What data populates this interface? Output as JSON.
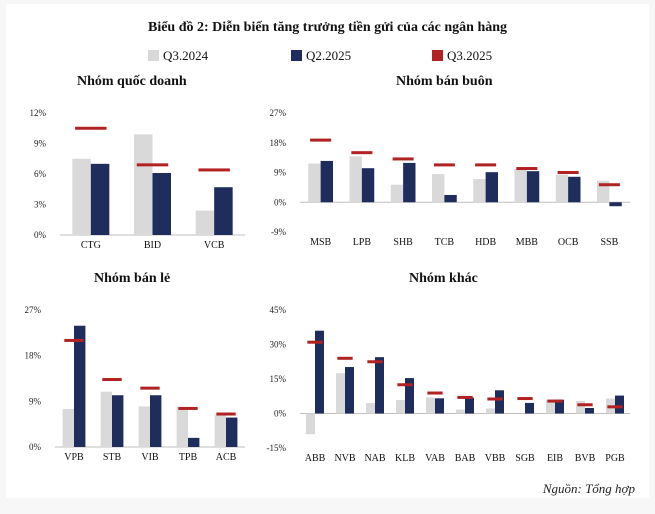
{
  "title": "Biểu đồ 2: Diễn biến tăng trưởng tiền gửi của các ngân hàng",
  "legend": [
    {
      "label": "Q3.2024",
      "color": "#d9d9d9"
    },
    {
      "label": "Q2.2025",
      "color": "#1f2d5c"
    },
    {
      "label": "Q3.2025",
      "color": "#b22222"
    }
  ],
  "source": "Nguồn: Tổng hợp",
  "chart_data": [
    {
      "type": "bar",
      "title": "Nhóm quốc doanh",
      "categories": [
        "CTG",
        "BID",
        "VCB"
      ],
      "ylim": [
        0,
        12
      ],
      "yticks": [
        "0%",
        "3%",
        "6%",
        "9%",
        "12%"
      ],
      "series": [
        {
          "name": "Q3.2024",
          "values": [
            7.5,
            9.9,
            2.4
          ]
        },
        {
          "name": "Q2.2025",
          "values": [
            7.0,
            6.1,
            4.7
          ]
        },
        {
          "name": "Q3.2025",
          "values": [
            10.5,
            6.9,
            6.4
          ]
        }
      ]
    },
    {
      "type": "bar",
      "title": "Nhóm bán buôn",
      "categories": [
        "MSB",
        "LPB",
        "SHB",
        "TCB",
        "HDB",
        "MBB",
        "OCB",
        "SSB"
      ],
      "ylim": [
        -9,
        27
      ],
      "yticks": [
        "-9%",
        "0%",
        "9%",
        "18%",
        "27%"
      ],
      "series": [
        {
          "name": "Q3.2024",
          "values": [
            11.7,
            13.9,
            5.3,
            8.5,
            7.0,
            10.1,
            8.4,
            6.5
          ]
        },
        {
          "name": "Q2.2025",
          "values": [
            12.5,
            10.3,
            11.9,
            2.2,
            9.1,
            9.4,
            7.7,
            -1.2
          ]
        },
        {
          "name": "Q3.2025",
          "values": [
            18.8,
            15.0,
            13.1,
            11.3,
            11.3,
            10.2,
            9.0,
            5.3
          ]
        }
      ]
    },
    {
      "type": "bar",
      "title": "Nhóm bán lẻ",
      "categories": [
        "VPB",
        "STB",
        "VIB",
        "TPB",
        "ACB"
      ],
      "ylim": [
        0,
        27
      ],
      "yticks": [
        "0%",
        "9%",
        "18%",
        "27%"
      ],
      "series": [
        {
          "name": "Q3.2024",
          "values": [
            7.5,
            10.9,
            8.0,
            7.9,
            6.3
          ]
        },
        {
          "name": "Q2.2025",
          "values": [
            23.9,
            10.2,
            10.2,
            1.8,
            5.8
          ]
        },
        {
          "name": "Q3.2025",
          "values": [
            21.0,
            13.3,
            11.6,
            7.6,
            6.5
          ]
        }
      ]
    },
    {
      "type": "bar",
      "title": "Nhóm khác",
      "categories": [
        "ABB",
        "NVB",
        "NAB",
        "KLB",
        "VAB",
        "BAB",
        "VBB",
        "SGB",
        "EIB",
        "BVB",
        "PGB"
      ],
      "ylim": [
        -15,
        45
      ],
      "yticks": [
        "-15%",
        "0%",
        "15%",
        "30%",
        "45%"
      ],
      "series": [
        {
          "name": "Q3.2024",
          "values": [
            -9.0,
            17.5,
            4.5,
            5.9,
            7.0,
            1.7,
            2.2,
            0.0,
            6.0,
            5.5,
            6.5
          ]
        },
        {
          "name": "Q2.2025",
          "values": [
            36.0,
            20.2,
            24.5,
            15.4,
            6.6,
            6.9,
            10.1,
            4.6,
            6.0,
            2.4,
            7.8
          ]
        },
        {
          "name": "Q3.2025",
          "values": [
            31.0,
            24.0,
            22.5,
            12.5,
            8.9,
            7.0,
            6.3,
            6.5,
            5.4,
            3.8,
            2.9
          ]
        }
      ]
    }
  ]
}
